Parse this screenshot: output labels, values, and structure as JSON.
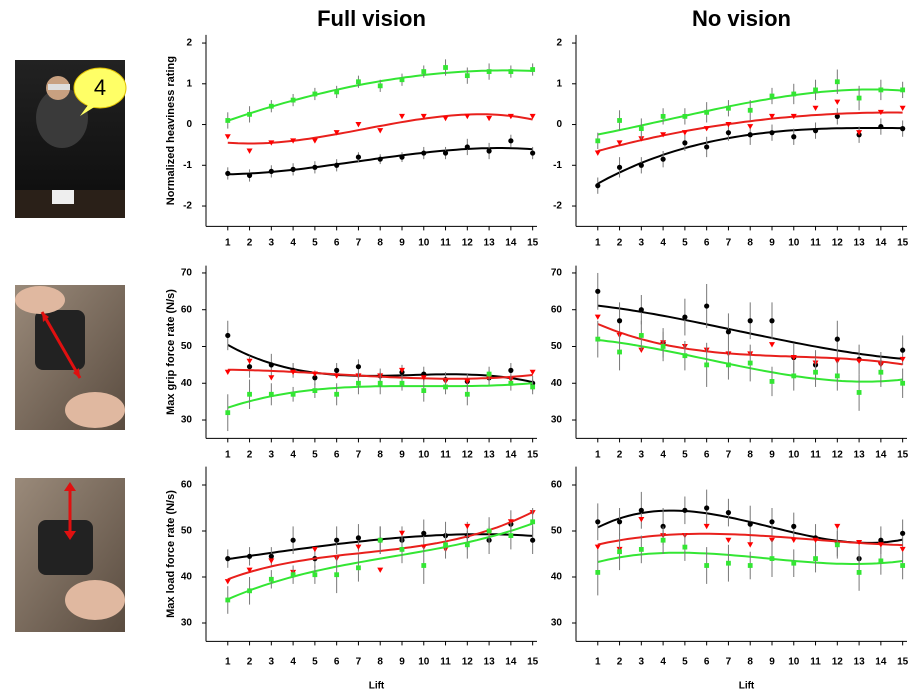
{
  "photos": {
    "bubble_text": "4"
  },
  "chart_data": [
    {
      "type": "scatter",
      "title": "Full vision",
      "ylabel": "Normalized heaviness rating",
      "x": [
        1,
        2,
        3,
        4,
        5,
        6,
        7,
        8,
        9,
        10,
        11,
        12,
        13,
        14,
        15
      ],
      "xlim": [
        0,
        15.2
      ],
      "xticks": [
        1,
        2,
        3,
        4,
        5,
        6,
        7,
        8,
        9,
        10,
        11,
        12,
        13,
        14,
        15
      ],
      "ylim": [
        -2.5,
        2.2
      ],
      "yticks": [
        -2,
        -1,
        0,
        1,
        2
      ],
      "series": [
        {
          "color": "#000000",
          "marker": "circle",
          "values": [
            -1.2,
            -1.25,
            -1.15,
            -1.1,
            -1.05,
            -1.0,
            -0.8,
            -0.85,
            -0.8,
            -0.7,
            -0.7,
            -0.55,
            -0.65,
            -0.4,
            -0.7
          ],
          "errors": [
            0.15,
            0.15,
            0.15,
            0.15,
            0.15,
            0.15,
            0.12,
            0.12,
            0.12,
            0.15,
            0.15,
            0.2,
            0.2,
            0.15,
            0.15
          ]
        },
        {
          "color": "#ff0000",
          "marker": "triangle-down",
          "values": [
            -0.3,
            -0.65,
            -0.45,
            -0.4,
            -0.4,
            -0.2,
            0,
            -0.15,
            0.2,
            0.2,
            0.15,
            0.2,
            0.15,
            0.2,
            0.2
          ],
          "errors": [
            0,
            0,
            0,
            0,
            0,
            0,
            0,
            0,
            0,
            0,
            0,
            0,
            0,
            0,
            0
          ]
        },
        {
          "color": "#33e633",
          "marker": "square",
          "values": [
            0.1,
            0.25,
            0.45,
            0.6,
            0.75,
            0.8,
            1.05,
            0.95,
            1.1,
            1.3,
            1.4,
            1.2,
            1.3,
            1.3,
            1.35
          ],
          "errors": [
            0.2,
            0.2,
            0.15,
            0.15,
            0.15,
            0.15,
            0.15,
            0.15,
            0.15,
            0.15,
            0.2,
            0.2,
            0.2,
            0.15,
            0.15
          ]
        }
      ]
    },
    {
      "type": "scatter",
      "title": "No vision",
      "x": [
        1,
        2,
        3,
        4,
        5,
        6,
        7,
        8,
        9,
        10,
        11,
        12,
        13,
        14,
        15
      ],
      "xlim": [
        0,
        15.2
      ],
      "xticks": [
        1,
        2,
        3,
        4,
        5,
        6,
        7,
        8,
        9,
        10,
        11,
        12,
        13,
        14,
        15
      ],
      "ylim": [
        -2.5,
        2.2
      ],
      "yticks": [
        -2,
        -1,
        0,
        1,
        2
      ],
      "series": [
        {
          "color": "#000000",
          "marker": "circle",
          "values": [
            -1.5,
            -1.05,
            -1.0,
            -0.85,
            -0.45,
            -0.55,
            -0.2,
            -0.25,
            -0.2,
            -0.3,
            -0.15,
            0.2,
            -0.25,
            -0.05,
            -0.1
          ],
          "errors": [
            0.2,
            0.25,
            0.2,
            0.2,
            0.2,
            0.25,
            0.2,
            0.25,
            0.2,
            0.2,
            0.2,
            0.2,
            0.2,
            0.2,
            0.2
          ]
        },
        {
          "color": "#ff0000",
          "marker": "triangle-down",
          "values": [
            -0.7,
            -0.45,
            -0.35,
            -0.25,
            -0.2,
            -0.1,
            0,
            -0.05,
            0.2,
            0.2,
            0.4,
            0.55,
            -0.2,
            0.3,
            0.4
          ],
          "errors": [
            0,
            0,
            0,
            0,
            0,
            0,
            0,
            0,
            0,
            0,
            0,
            0,
            0,
            0,
            0
          ]
        },
        {
          "color": "#33e633",
          "marker": "square",
          "values": [
            -0.4,
            0.1,
            -0.1,
            0.2,
            0.2,
            0.3,
            0.4,
            0.35,
            0.7,
            0.75,
            0.85,
            1.05,
            0.65,
            0.85,
            0.85
          ],
          "errors": [
            0.2,
            0.25,
            0.25,
            0.2,
            0.2,
            0.25,
            0.2,
            0.25,
            0.2,
            0.25,
            0.25,
            0.3,
            0.3,
            0.25,
            0.2
          ]
        }
      ]
    },
    {
      "type": "scatter",
      "ylabel": "Max grip force rate (N/s)",
      "x": [
        1,
        2,
        3,
        4,
        5,
        6,
        7,
        8,
        9,
        10,
        11,
        12,
        13,
        14,
        15
      ],
      "xlim": [
        0,
        15.2
      ],
      "xticks": [
        1,
        2,
        3,
        4,
        5,
        6,
        7,
        8,
        9,
        10,
        11,
        12,
        13,
        14,
        15
      ],
      "ylim": [
        25,
        72
      ],
      "yticks": [
        30,
        40,
        50,
        60,
        70
      ],
      "series": [
        {
          "color": "#000000",
          "marker": "circle",
          "values": [
            53,
            44.5,
            45,
            43.5,
            41.5,
            43.5,
            44.5,
            42,
            43,
            42.5,
            41,
            40.5,
            41.5,
            43.5,
            40
          ],
          "errors": [
            4,
            3,
            3,
            2,
            2,
            2,
            2,
            2,
            2,
            2,
            2,
            2,
            2,
            2,
            2
          ]
        },
        {
          "color": "#ff0000",
          "marker": "triangle-down",
          "values": [
            43,
            46,
            41.5,
            43,
            42.5,
            42,
            42,
            42,
            43.5,
            41.5,
            40.5,
            40.5,
            41.5,
            41,
            43
          ],
          "errors": [
            0,
            0,
            0,
            0,
            0,
            0,
            0,
            0,
            0,
            0,
            0,
            0,
            0,
            0,
            0
          ]
        },
        {
          "color": "#33e633",
          "marker": "square",
          "values": [
            32,
            37,
            37,
            37,
            38,
            37,
            40,
            40,
            40,
            38,
            39,
            37,
            42.5,
            40,
            39
          ],
          "errors": [
            5,
            4,
            3,
            2,
            2,
            3,
            3,
            3,
            2,
            3,
            2,
            3,
            2,
            2,
            2
          ]
        }
      ]
    },
    {
      "type": "scatter",
      "x": [
        1,
        2,
        3,
        4,
        5,
        6,
        7,
        8,
        9,
        10,
        11,
        12,
        13,
        14,
        15
      ],
      "xlim": [
        0,
        15.2
      ],
      "xticks": [
        1,
        2,
        3,
        4,
        5,
        6,
        7,
        8,
        9,
        10,
        11,
        12,
        13,
        14,
        15
      ],
      "ylim": [
        25,
        72
      ],
      "yticks": [
        30,
        40,
        50,
        60,
        70
      ],
      "series": [
        {
          "color": "#000000",
          "marker": "circle",
          "values": [
            65,
            57,
            60,
            51,
            58,
            61,
            54,
            57,
            57,
            47,
            45,
            52,
            46.5,
            45.5,
            49
          ],
          "errors": [
            5,
            5,
            4,
            4,
            5,
            6,
            5,
            5,
            5,
            4,
            4,
            5,
            4,
            3,
            4
          ]
        },
        {
          "color": "#ff0000",
          "marker": "triangle-down",
          "values": [
            58,
            53,
            49,
            51,
            50,
            49,
            48,
            48,
            50.5,
            47,
            45.5,
            46,
            46,
            45,
            46.5
          ],
          "errors": [
            0,
            0,
            0,
            0,
            0,
            0,
            0,
            0,
            0,
            0,
            0,
            0,
            0,
            0,
            0
          ]
        },
        {
          "color": "#33e633",
          "marker": "square",
          "values": [
            52,
            48.5,
            53,
            50,
            47.5,
            45,
            45,
            45.5,
            40.5,
            42,
            43,
            42,
            37.5,
            43,
            40
          ],
          "errors": [
            5,
            5,
            4,
            4,
            4,
            6,
            4,
            5,
            4,
            4,
            4,
            4,
            5,
            4,
            4
          ]
        }
      ]
    },
    {
      "type": "scatter",
      "ylabel": "Max load force rate (N/s)",
      "xlabel": "Lift",
      "x": [
        1,
        2,
        3,
        4,
        5,
        6,
        7,
        8,
        9,
        10,
        11,
        12,
        13,
        14,
        15
      ],
      "xlim": [
        0,
        15.2
      ],
      "xticks": [
        1,
        2,
        3,
        4,
        5,
        6,
        7,
        8,
        9,
        10,
        11,
        12,
        13,
        14,
        15
      ],
      "ylim": [
        26,
        64
      ],
      "yticks": [
        30,
        40,
        50,
        60
      ],
      "series": [
        {
          "color": "#000000",
          "marker": "circle",
          "values": [
            44,
            44.5,
            44.5,
            48,
            44,
            48,
            48.5,
            48,
            48,
            49.5,
            49,
            49,
            48,
            51.5,
            48
          ],
          "errors": [
            2,
            2,
            2,
            3,
            2,
            3,
            3,
            3,
            3,
            3,
            3,
            3,
            3,
            3,
            3
          ]
        },
        {
          "color": "#ff0000",
          "marker": "triangle-down",
          "values": [
            39,
            41.5,
            43.5,
            41,
            46,
            44,
            46.5,
            41.5,
            49.5,
            46.5,
            46,
            51,
            49.5,
            52,
            54
          ],
          "errors": [
            0,
            0,
            0,
            0,
            0,
            0,
            0,
            0,
            0,
            0,
            0,
            0,
            0,
            0,
            0
          ]
        },
        {
          "color": "#33e633",
          "marker": "square",
          "values": [
            35,
            37,
            39.5,
            40.5,
            40.5,
            40.5,
            42,
            48,
            46,
            42.5,
            47,
            47,
            50,
            49,
            52
          ],
          "errors": [
            3,
            3,
            2,
            2,
            2,
            4,
            3,
            3,
            3,
            4,
            3,
            3,
            3,
            3,
            3
          ]
        }
      ]
    },
    {
      "type": "scatter",
      "xlabel": "Lift",
      "x": [
        1,
        2,
        3,
        4,
        5,
        6,
        7,
        8,
        9,
        10,
        11,
        12,
        13,
        14,
        15
      ],
      "xlim": [
        0,
        15.2
      ],
      "xticks": [
        1,
        2,
        3,
        4,
        5,
        6,
        7,
        8,
        9,
        10,
        11,
        12,
        13,
        14,
        15
      ],
      "ylim": [
        26,
        64
      ],
      "yticks": [
        30,
        40,
        50,
        60
      ],
      "series": [
        {
          "color": "#000000",
          "marker": "circle",
          "values": [
            52,
            52,
            54.5,
            51,
            54.5,
            55,
            54,
            51.5,
            52,
            51,
            48.5,
            47.5,
            44,
            48,
            49.5
          ],
          "errors": [
            4,
            3,
            4,
            4,
            3,
            4,
            3,
            4,
            3,
            3,
            3,
            3,
            3,
            3,
            3
          ]
        },
        {
          "color": "#ff0000",
          "marker": "triangle-down",
          "values": [
            46.5,
            46,
            52.5,
            49,
            49,
            51,
            48,
            47,
            48,
            48,
            48,
            51,
            47.5,
            47,
            46
          ],
          "errors": [
            0,
            0,
            0,
            0,
            0,
            0,
            0,
            0,
            0,
            0,
            0,
            0,
            0,
            0,
            0
          ]
        },
        {
          "color": "#33e633",
          "marker": "square",
          "values": [
            41,
            45.5,
            46,
            48,
            46.5,
            42.5,
            43,
            42.5,
            44,
            43,
            44,
            47,
            41,
            43.5,
            42.5
          ],
          "errors": [
            5,
            4,
            3,
            3,
            3,
            4,
            4,
            3,
            4,
            3,
            3,
            3,
            4,
            3,
            3
          ]
        }
      ]
    }
  ]
}
